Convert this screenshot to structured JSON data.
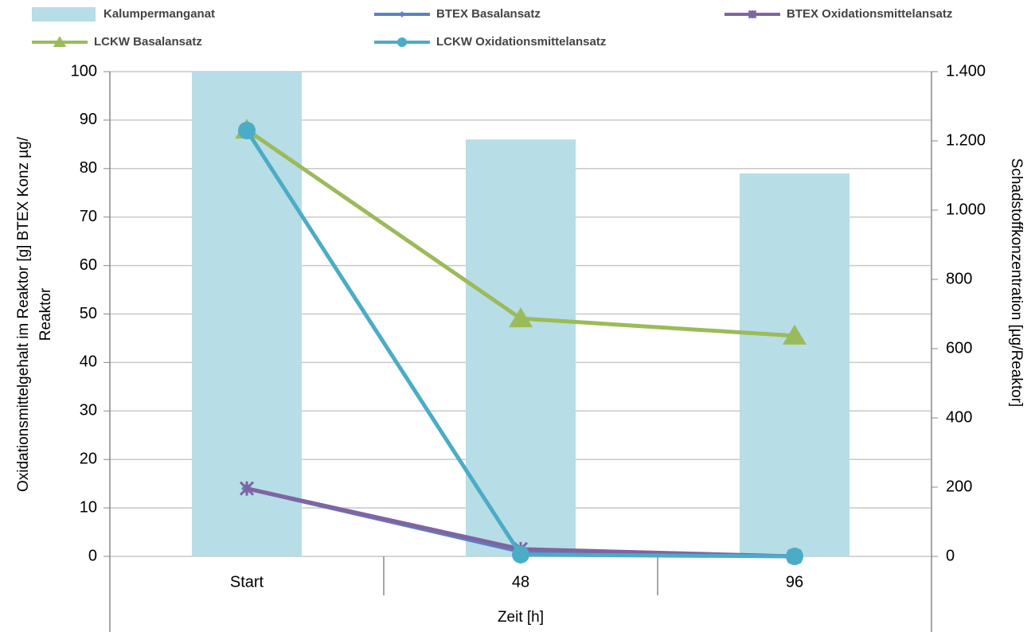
{
  "chart_data": {
    "type": "bar",
    "x_label": "Zeit [h]",
    "y_label": [
      "Oxidationsmittelgehalt im Reaktor [g] BTEX Konz µg/",
      "Reaktor"
    ],
    "y2_label": "Schadstoffkonzentration  [µg/Reaktor]",
    "categories": [
      "Start",
      "48",
      "96"
    ],
    "ylim": [
      0,
      100
    ],
    "yticks": [
      0,
      10,
      20,
      30,
      40,
      50,
      60,
      70,
      80,
      90,
      100
    ],
    "y2lim": [
      0,
      1400
    ],
    "y2ticks": [
      0,
      200,
      400,
      600,
      800,
      {
        "value": 1000,
        "label": "1.000"
      },
      {
        "value": 1200,
        "label": "1.200"
      },
      {
        "value": 1400,
        "label": "1.400"
      }
    ],
    "grid": true,
    "legend": "top",
    "series": [
      {
        "name": "Kalumpermanganat",
        "type": "bar",
        "color": "#b7dde6",
        "values": [
          100,
          86,
          79
        ]
      },
      {
        "name": "BTEX Basalansatz",
        "type": "line",
        "marker": "diamond",
        "color": "#5b80c4",
        "values": [
          14,
          1,
          0
        ]
      },
      {
        "name": "BTEX Oxidationsmittelansatz",
        "type": "line",
        "marker": "cross",
        "color": "#8064a2",
        "values": [
          14,
          1.5,
          0
        ]
      },
      {
        "name": "LCKW Basalansatz",
        "type": "line",
        "marker": "triangle",
        "color": "#9bbb59",
        "axis": "y2",
        "values": [
          1232,
          687,
          637
        ]
      },
      {
        "name": "LCKW Oxidationsmittelansatz",
        "type": "line",
        "marker": "circle",
        "color": "#4bacc6",
        "axis": "y2",
        "values": [
          1230,
          5,
          0
        ]
      }
    ]
  }
}
